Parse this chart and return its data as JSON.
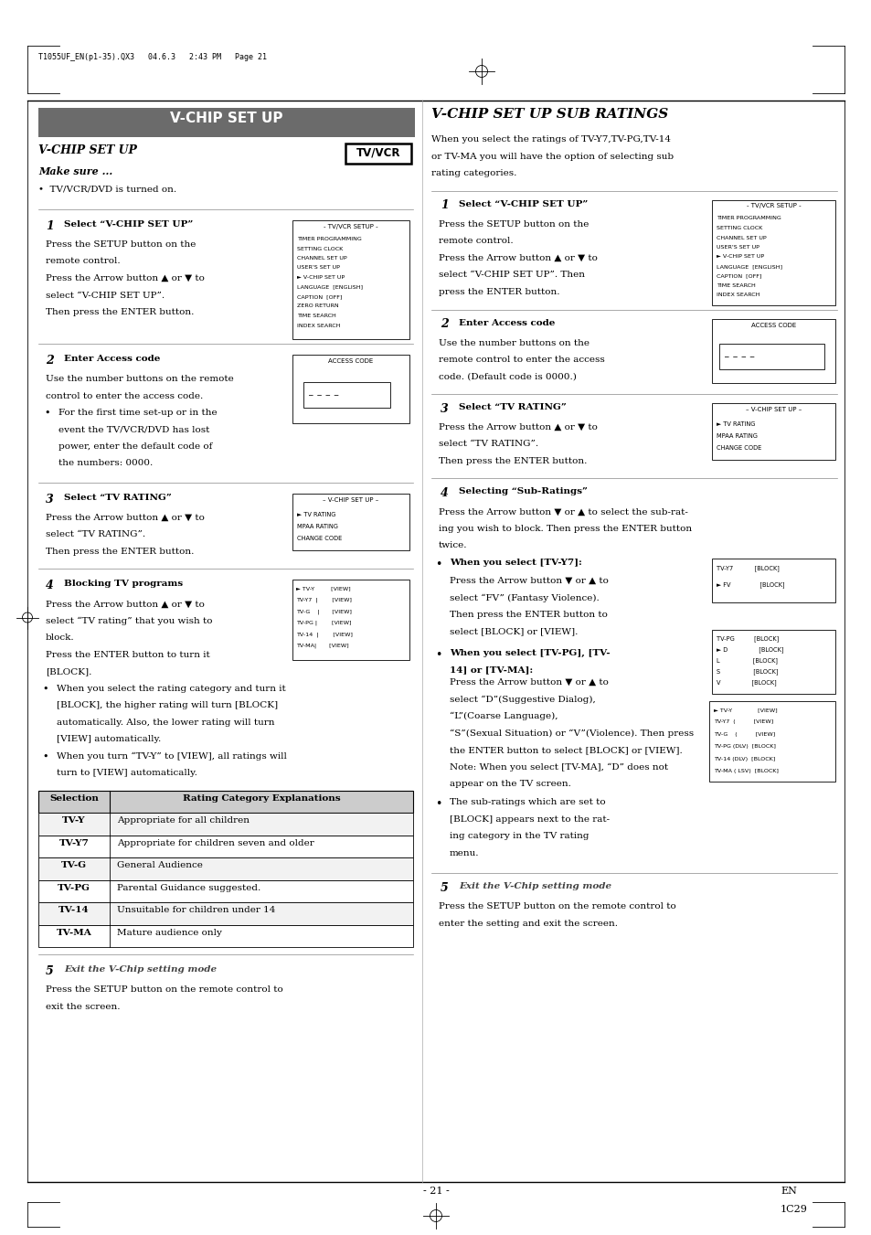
{
  "page_width": 9.54,
  "page_height": 13.51,
  "bg_color": "#ffffff",
  "header_text": "T1055UF_EN(p1-35).QX3   04.6.3   2:43 PM   Page 21",
  "footer_page": "- 21 -",
  "footer_en": "EN",
  "footer_code": "1C29",
  "left_title": "V-CHIP SET UP",
  "tv_vcr_label": "TV/VCR",
  "section_italic_title": "V-CHIP SET UP",
  "make_sure": "Make sure ...",
  "bullet_item": "•  TV/VCR/DVD is turned on.",
  "step1_left_num": "1",
  "step1_left_title": "Select “V-CHIP SET UP”",
  "step1_left_body": "Press the SETUP button on the\nremote control.\nPress the Arrow button ▲ or ▼ to\nselect “V-CHIP SET UP”.\nThen press the ENTER button.",
  "step1_box_title": "- TV/VCR SETUP -",
  "step1_box_lines": [
    "TIMER PROGRAMMING",
    "SETTING CLOCK",
    "CHANNEL SET UP",
    "USER'S SET UP",
    "► V-CHIP SET UP",
    "LANGUAGE  [ENGLISH]",
    "CAPTION  [OFF]",
    "ZERO RETURN",
    "TIME SEARCH",
    "INDEX SEARCH"
  ],
  "step2_left_num": "2",
  "step2_left_title": "Enter Access code",
  "step2_left_body": "Use the number buttons on the remote\ncontrol to enter the access code.",
  "step2_bullet": "For the first time set-up or in the\nevent the TV/VCR/DVD has lost\npower, enter the default code of\nthe numbers: 0000.",
  "step2_box_title": "ACCESS CODE",
  "step3_left_num": "3",
  "step3_left_title": "Select “TV RATING”",
  "step3_left_body": "Press the Arrow button ▲ or ▼ to\nselect “TV RATING”.\nThen press the ENTER button.",
  "step3_box_title": "– V-CHIP SET UP –",
  "step3_box_lines": [
    "► TV RATING",
    "MPAA RATING",
    "CHANGE CODE"
  ],
  "step4_left_num": "4",
  "step4_left_title": "Blocking TV programs",
  "step4_left_body": "Press the Arrow button ▲ or ▼ to\nselect “TV rating” that you wish to\nblock.\nPress the ENTER button to turn it\n[BLOCK].",
  "step4_bullet1": "When you select the rating category and turn it\n[BLOCK], the higher rating will turn [BLOCK]\nautomatically. Also, the lower rating will turn\n[VIEW] automatically.",
  "step4_bullet2": "When you turn “TV-Y” to [VIEW], all ratings will\nturn to [VIEW] automatically.",
  "step4_box_lines": [
    "► TV-Y         [VIEW]",
    "TV-Y7  |        [VIEW]",
    "TV-G    |       [VIEW]",
    "TV-PG |        [VIEW]",
    "TV-14  |        [VIEW]",
    "TV-MA|       [VIEW]"
  ],
  "table_headers": [
    "Selection",
    "Rating Category Explanations"
  ],
  "table_rows": [
    [
      "TV-Y",
      "Appropriate for all children"
    ],
    [
      "TV-Y7",
      "Appropriate for children seven and older"
    ],
    [
      "TV-G",
      "General Audience"
    ],
    [
      "TV-PG",
      "Parental Guidance suggested."
    ],
    [
      "TV-14",
      "Unsuitable for children under 14"
    ],
    [
      "TV-MA",
      "Mature audience only"
    ]
  ],
  "step5_left_num": "5",
  "step5_left_title": "Exit the V-Chip setting mode",
  "step5_left_body": "Press the SETUP button on the remote control to\nexit the screen.",
  "right_title_italic": "V-CHIP SET UP SUB RATINGS",
  "right_intro": "When you select the ratings of TV-Y7,TV-PG,TV-14\nor TV-MA you will have the option of selecting sub\nrating categories.",
  "right_step1_num": "1",
  "right_step1_title": "Select “V-CHIP SET UP”",
  "right_step1_body": "Press the SETUP button on the\nremote control.\nPress the Arrow button ▲ or ▼ to\nselect “V-CHIP SET UP”. Then\npress the ENTER button.",
  "right_step1_box_title": "- TV/VCR SETUP -",
  "right_step1_box_lines": [
    "TIMER PROGRAMMING",
    "SETTING CLOCK",
    "CHANNEL SET UP",
    "USER'S SET UP",
    "► V-CHIP SET UP",
    "LANGUAGE  [ENGLISH]",
    "CAPTION  [OFF]",
    "TIME SEARCH",
    "INDEX SEARCH"
  ],
  "right_step2_num": "2",
  "right_step2_title": "Enter Access code",
  "right_step2_body": "Use the number buttons on the\nremote control to enter the access\ncode. (Default code is 0000.)",
  "right_step2_box_title": "ACCESS CODE",
  "right_step3_num": "3",
  "right_step3_title": "Select “TV RATING”",
  "right_step3_body": "Press the Arrow button ▲ or ▼ to\nselect “TV RATING”.\nThen press the ENTER button.",
  "right_step3_box_title": "– V-CHIP SET UP –",
  "right_step3_box_lines": [
    "► TV RATING",
    "MPAA RATING",
    "CHANGE CODE"
  ],
  "right_step4_num": "4",
  "right_step4_title": "Selecting “Sub-Ratings”",
  "right_step4_body": "Press the Arrow button ▼ or ▲ to select the sub-rat-\ning you wish to block. Then press the ENTER button\ntwice.",
  "right_step4_tv_y7_bullet": "When you select [TV-Y7]:",
  "right_step4_tv_y7_body": "Press the Arrow button ▼ or ▲ to\nselect “FV” (Fantasy Violence).\nThen press the ENTER button to\nselect [BLOCK] or [VIEW].",
  "right_step4_tv_y7_box": [
    "TV-Y7           [BLOCK]",
    "► FV               [BLOCK]"
  ],
  "right_step4_tvpg_bullet": "When you select [TV-PG], [TV-\n14] or [TV-MA]:",
  "right_step4_tvpg_body": "Press the Arrow button ▼ or ▲ to\nselect “D”(Suggestive Dialog),\n“L”(Coarse Language),\n“S”(Sexual Situation) or “V”(Violence). Then press\nthe ENTER button to select [BLOCK] or [VIEW].\nNote: When you select [TV-MA], “D” does not\nappear on the TV screen.",
  "right_step4_tvpg_box": [
    "TV-PG          [BLOCK]",
    "► D                [BLOCK]",
    "L                 [BLOCK]",
    "S                 [BLOCK]",
    "V                [BLOCK]"
  ],
  "right_step4_sub_note": "The sub-ratings which are set to\n[BLOCK] appears next to the rat-\ning category in the TV rating\nmenu.",
  "right_step4_sub_box": [
    "► TV-Y              [VIEW]",
    "TV-Y7  (          [VIEW]",
    "TV-G    (          [VIEW]",
    "TV-PG (DLV)  [BLOCK]",
    "TV-14 (DLV)  [BLOCK]",
    "TV-MA ( LSV)  [BLOCK]"
  ],
  "right_step5_num": "5",
  "right_step5_title": "Exit the V-Chip setting mode",
  "right_step5_body": "Press the SETUP button on the remote control to\nenter the setting and exit the screen."
}
